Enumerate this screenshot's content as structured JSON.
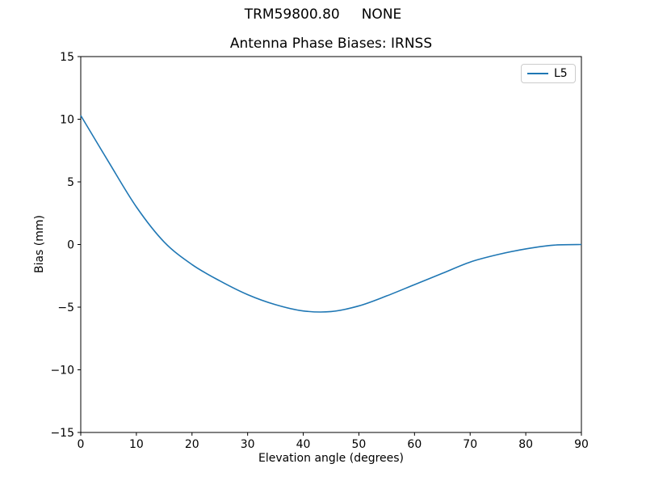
{
  "figure": {
    "suptitle": "TRM59800.80     NONE"
  },
  "chart_data": {
    "type": "line",
    "title": "Antenna Phase Biases: IRNSS",
    "xlabel": "Elevation angle (degrees)",
    "ylabel": "Bias (mm)",
    "xlim": [
      0,
      90
    ],
    "ylim": [
      -15,
      15
    ],
    "xticks": [
      0,
      10,
      20,
      30,
      40,
      50,
      60,
      70,
      80,
      90
    ],
    "yticks": [
      -15,
      -10,
      -5,
      0,
      5,
      10,
      15
    ],
    "grid": false,
    "legend": {
      "position": "upper right",
      "entries": [
        "L5"
      ]
    },
    "series": [
      {
        "name": "L5",
        "color": "#1f77b4",
        "x": [
          0,
          5,
          10,
          15,
          20,
          25,
          30,
          35,
          40,
          45,
          50,
          55,
          60,
          65,
          70,
          75,
          80,
          85,
          90
        ],
        "y": [
          10.3,
          6.6,
          3.0,
          0.2,
          -1.6,
          -2.9,
          -4.0,
          -4.8,
          -5.3,
          -5.35,
          -4.9,
          -4.1,
          -3.2,
          -2.3,
          -1.4,
          -0.8,
          -0.35,
          -0.05,
          0.0
        ]
      }
    ]
  }
}
